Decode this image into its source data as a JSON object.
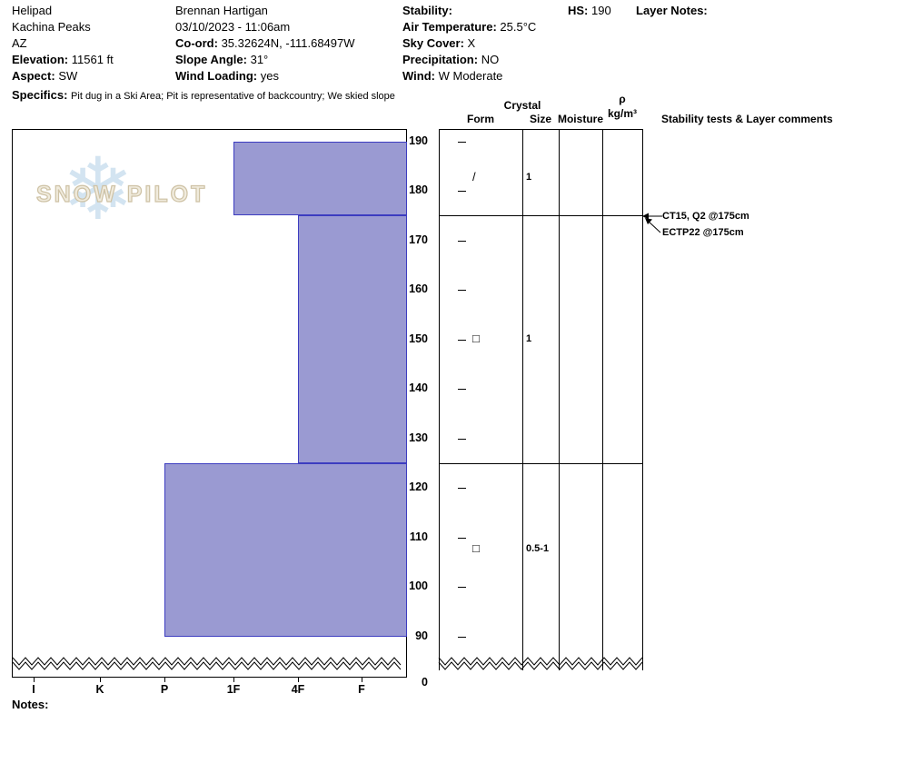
{
  "header": {
    "site": {
      "name": "Helipad",
      "range": "Kachina Peaks",
      "state": "AZ",
      "elevation_label": "Elevation:",
      "elevation": "11561 ft",
      "aspect_label": "Aspect:",
      "aspect": "SW"
    },
    "obs": {
      "observer": "Brennan Hartigan",
      "datetime": "03/10/2023 - 11:06am",
      "coord_label": "Co-ord:",
      "coord": "35.32624N, -111.68497W",
      "slope_label": "Slope Angle:",
      "slope": "31°",
      "windload_label": "Wind Loading:",
      "windload": "yes"
    },
    "wx": {
      "stability_label": "Stability:",
      "airtemp_label": "Air Temperature:",
      "airtemp": "25.5°C",
      "sky_label": "Sky Cover:",
      "sky": "X",
      "precip_label": "Precipitation:",
      "precip": "NO",
      "wind_label": "Wind:",
      "wind": "W Moderate"
    },
    "hs_label": "HS:",
    "hs": "190",
    "layernotes_label": "Layer Notes:",
    "specifics_label": "Specifics:",
    "specifics": "Pit dug in a Ski Area; Pit is representative of backcountry; We skied slope"
  },
  "chart_data": {
    "type": "bar",
    "subtype": "snow-pit-hardness-profile",
    "depth_unit": "cm",
    "total_depth_hs": 190,
    "depth_ticks": [
      190,
      180,
      170,
      160,
      150,
      140,
      130,
      120,
      110,
      100,
      90
    ],
    "ground_label": "0",
    "hardness_labels": [
      "I",
      "K",
      "P",
      "1F",
      "4F",
      "F"
    ],
    "layers": [
      {
        "top_cm": 190,
        "bottom_cm": 175,
        "hardness": "1F",
        "grain_form_symbol": "/",
        "grain_size_mm": "1"
      },
      {
        "top_cm": 175,
        "bottom_cm": 125,
        "hardness": "4F",
        "grain_form_symbol": "□",
        "grain_size_mm": "1"
      },
      {
        "top_cm": 125,
        "bottom_cm": 90,
        "hardness": "P",
        "grain_form_symbol": "□",
        "grain_size_mm": "0.5-1"
      }
    ],
    "columns": {
      "crystal": "Crystal",
      "form": "Form",
      "size": "Size",
      "moisture": "Moisture",
      "density_symbol": "ρ",
      "density_units": "kg/m³",
      "stability": "Stability tests & Layer comments"
    },
    "stability_tests": [
      {
        "label": "CT15, Q2 @175cm",
        "depth_cm": 175
      },
      {
        "label": "ECTP22 @175cm",
        "depth_cm": 175
      }
    ],
    "colors": {
      "layer_fill": "#9a9ad2",
      "layer_border": "#3c3cc0"
    }
  },
  "footer": {
    "notes_label": "Notes:"
  },
  "logo": {
    "word1": "SNOW",
    "word2": "PILOT",
    "snowflake": "❄"
  }
}
